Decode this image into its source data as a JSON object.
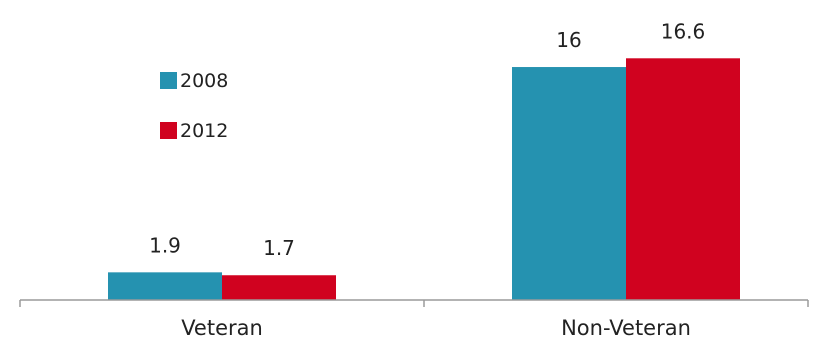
{
  "chart_data": {
    "type": "bar",
    "title": "",
    "xlabel": "",
    "ylabel": "",
    "categories": [
      "Veteran",
      "Non-Veteran"
    ],
    "series": [
      {
        "name": "2008",
        "color": "#2592b0",
        "values": [
          1.9,
          16
        ],
        "labels": [
          "1.9",
          "16"
        ]
      },
      {
        "name": "2012",
        "color": "#d0021f",
        "values": [
          1.7,
          16.6
        ],
        "labels": [
          "1.7",
          "16.6"
        ]
      }
    ],
    "ylim": [
      0,
      18.2
    ],
    "grid": false,
    "legend": "upper-left inside plot"
  }
}
